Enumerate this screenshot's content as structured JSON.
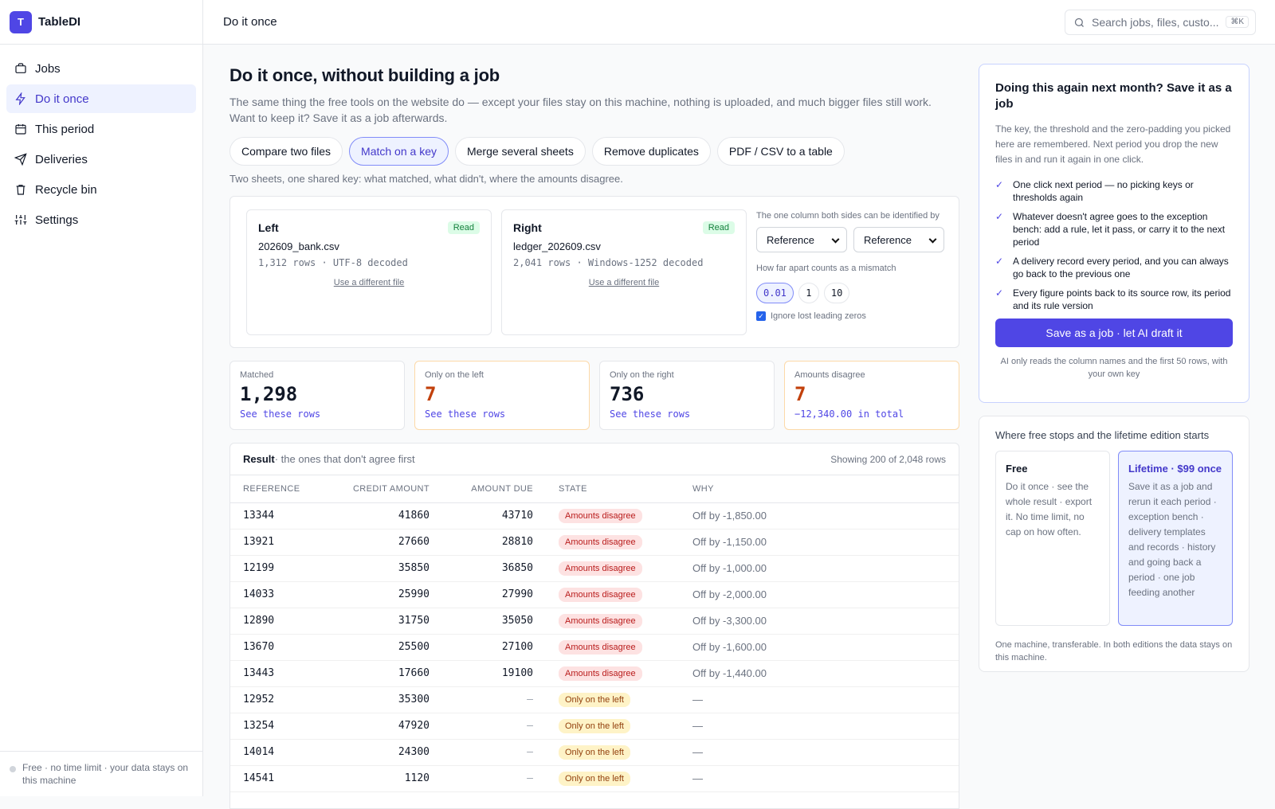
{
  "app": {
    "logo_letter": "T",
    "name": "TableDI"
  },
  "sidebar": {
    "items": [
      {
        "label": "Jobs",
        "icon": "briefcase-icon",
        "active": false
      },
      {
        "label": "Do it once",
        "icon": "bolt-icon",
        "active": true
      },
      {
        "label": "This period",
        "icon": "calendar-icon",
        "active": false
      },
      {
        "label": "Deliveries",
        "icon": "send-icon",
        "active": false
      },
      {
        "label": "Recycle bin",
        "icon": "trash-icon",
        "active": false
      },
      {
        "label": "Settings",
        "icon": "sliders-icon",
        "active": false
      }
    ],
    "footer": "Free · no time limit · your data stays on this machine"
  },
  "topbar": {
    "title": "Do it once",
    "search_placeholder": "Search jobs, files, custo...",
    "shortcut": "⌘K"
  },
  "main": {
    "title": "Do it once, without building a job",
    "subtitle": "The same thing the free tools on the website do — except your files stay on this machine, nothing is uploaded, and much bigger files still work. Want to keep it? Save it as a job afterwards.",
    "tabs": [
      "Compare two files",
      "Match on a key",
      "Merge several sheets",
      "Remove duplicates",
      "PDF / CSV to a table"
    ],
    "active_tab": 1,
    "tab_description": "Two sheets, one shared key: what matched, what didn't, where the amounts disagree."
  },
  "files": {
    "left": {
      "title": "Left",
      "status": "Read",
      "name": "202609_bank.csv",
      "meta": "1,312 rows · UTF-8 decoded",
      "link": "Use a different file"
    },
    "right": {
      "title": "Right",
      "status": "Read",
      "name": "ledger_202609.csv",
      "meta": "2,041 rows · Windows-1252 decoded",
      "link": "Use a different file"
    }
  },
  "key": {
    "label": "The one column both sides can be identified by",
    "left_value": "Reference",
    "right_value": "Reference",
    "threshold_label": "How far apart counts as a mismatch",
    "thresholds": [
      "0.01",
      "1",
      "10"
    ],
    "active_threshold": 0,
    "ignore_zeros": "Ignore lost leading zeros"
  },
  "stats": {
    "matched": {
      "label": "Matched",
      "value": "1,298",
      "link": "See these rows"
    },
    "left_only": {
      "label": "Only on the left",
      "value": "7",
      "link": "See these rows"
    },
    "right_only": {
      "label": "Only on the right",
      "value": "736",
      "link": "See these rows"
    },
    "disagree": {
      "label": "Amounts disagree",
      "value": "7",
      "link": "−12,340.00 in total"
    }
  },
  "result": {
    "title": "Result",
    "subtitle": " · the ones that don't agree first",
    "showing": "Showing 200 of 2,048 rows",
    "columns": [
      "REFERENCE",
      "CREDIT AMOUNT",
      "AMOUNT DUE",
      "STATE",
      "WHY"
    ],
    "rows": [
      [
        "13344",
        "41860",
        "43710",
        "Amounts disagree",
        "Off by -1,850.00"
      ],
      [
        "13921",
        "27660",
        "28810",
        "Amounts disagree",
        "Off by -1,150.00"
      ],
      [
        "12199",
        "35850",
        "36850",
        "Amounts disagree",
        "Off by -1,000.00"
      ],
      [
        "14033",
        "25990",
        "27990",
        "Amounts disagree",
        "Off by -2,000.00"
      ],
      [
        "12890",
        "31750",
        "35050",
        "Amounts disagree",
        "Off by -3,300.00"
      ],
      [
        "13670",
        "25500",
        "27100",
        "Amounts disagree",
        "Off by -1,600.00"
      ],
      [
        "13443",
        "17660",
        "19100",
        "Amounts disagree",
        "Off by -1,440.00"
      ],
      [
        "12952",
        "35300",
        "—",
        "Only on the left",
        "—"
      ],
      [
        "13254",
        "47920",
        "—",
        "Only on the left",
        "—"
      ],
      [
        "14014",
        "24300",
        "—",
        "Only on the left",
        "—"
      ],
      [
        "14541",
        "1120",
        "—",
        "Only on the left",
        "—"
      ]
    ]
  },
  "promo": {
    "title": "Doing this again next month? Save it as a job",
    "text": "The key, the threshold and the zero-padding you picked here are remembered. Next period you drop the new files in and run it again in one click.",
    "bullets": [
      "One click next period — no picking keys or thresholds again",
      "Whatever doesn't agree goes to the exception bench: add a rule, let it pass, or carry it to the next period",
      "A delivery record every period, and you can always go back to the previous one",
      "Every figure points back to its source row, its period and its rule version"
    ],
    "cta": "Save as a job · let AI draft it",
    "note": "AI only reads the column names and the first 50 rows, with your own key"
  },
  "editions": {
    "title": "Where free stops and the lifetime edition starts",
    "free": {
      "name": "Free",
      "desc": "Do it once · see the whole result · export it. No time limit, no cap on how often."
    },
    "lifetime": {
      "name": "Lifetime · $99 once",
      "desc": "Save it as a job and rerun it each period · exception bench · delivery templates and records · history and going back a period · one job feeding another"
    },
    "footer": "One machine, transferable. In both editions the data stays on this machine."
  }
}
